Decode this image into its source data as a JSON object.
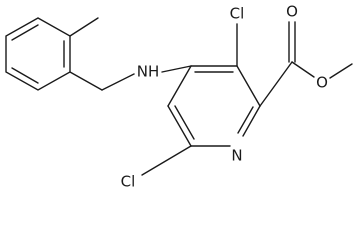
{
  "atoms": [
    {
      "label": "Cl"
    },
    {
      "label": "O"
    },
    {
      "label": "O"
    },
    {
      "label": "NH"
    },
    {
      "label": "N"
    },
    {
      "label": "Cl"
    }
  ]
}
